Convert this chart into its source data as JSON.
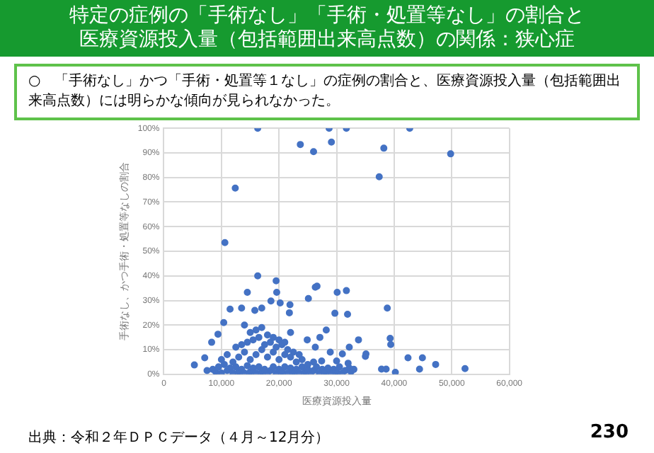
{
  "chart_data": {
    "type": "scatter",
    "title": "特定の症例の「手術なし」「手術・処置等なし」の割合と医療資源投入量（包括範囲出来高点数）の関係：狭心症",
    "subtitle": "○　「手術なし」かつ「手術・処置等１なし」の症例の割合と、医療資源投入量（包括範囲出来高点数）には明らかな傾向が見られなかった。",
    "xlabel": "医療資源投入量",
    "ylabel": "手術なし、かつ手術・処置等なしの割合",
    "annotations": [
      "出典：令和２年ＤＰＣデータ（４月～12月分）",
      "230"
    ],
    "xlim": [
      0,
      60000
    ],
    "xticks": [
      0,
      {
        "value": 10000,
        "label": "10,000"
      },
      {
        "value": 20000,
        "label": "20,000"
      },
      {
        "value": 30000,
        "label": "30,000"
      },
      {
        "value": 40000,
        "label": "40,000"
      },
      {
        "value": 50000,
        "label": "50,000"
      },
      {
        "value": 60000,
        "label": "60,000"
      }
    ],
    "ylim": [
      0,
      100
    ],
    "yticks": [
      {
        "value": 0,
        "label": "0%"
      },
      {
        "value": 10,
        "label": "10%"
      },
      {
        "value": 20,
        "label": "20%"
      },
      {
        "value": 30,
        "label": "30%"
      },
      {
        "value": 40,
        "label": "40%"
      },
      {
        "value": 50,
        "label": "50%"
      },
      {
        "value": 60,
        "label": "60%"
      },
      {
        "value": 70,
        "label": "70%"
      },
      {
        "value": 80,
        "label": "80%"
      },
      {
        "value": 90,
        "label": "90%"
      },
      {
        "value": 100,
        "label": "100%"
      }
    ],
    "grid": true,
    "legend": false,
    "marker": "circle",
    "series": [
      {
        "color": "#4472c4",
        "x": [
          16300,
          28700,
          31700,
          42700,
          23700,
          29100,
          26000,
          38200,
          49800,
          37400,
          12400,
          10600,
          16300,
          19500,
          26600,
          26300,
          30100,
          31700,
          14500,
          19600,
          25100,
          29700,
          31900,
          38800,
          11500,
          13500,
          15800,
          17000,
          18600,
          20200,
          21900,
          21800,
          10400,
          9400,
          33800,
          35100,
          35000,
          39300,
          39400,
          37800,
          38600,
          40200,
          42400,
          44900,
          44400,
          47200,
          52300,
          5300,
          7100,
          8300,
          7500,
          28200,
          27100,
          24900,
          26300,
          28900,
          31000,
          32200,
          30000,
          32200,
          27400,
          8500,
          9000,
          9500,
          10000,
          10500,
          11000,
          11500,
          12000,
          12500,
          13000,
          13500,
          14000,
          14500,
          15000,
          15500,
          16000,
          16500,
          17000,
          17500,
          18000,
          18500,
          19000,
          19500,
          20000,
          20500,
          21000,
          21500,
          22000,
          22500,
          23000,
          23500,
          24000,
          24500,
          25000,
          25500,
          26000,
          26500,
          27000,
          27500,
          28000,
          28500,
          29000,
          29500,
          30000,
          30500,
          31000,
          31500,
          32000,
          32500,
          33000,
          10000,
          11000,
          12000,
          13000,
          14000,
          15000,
          16000,
          17000,
          18000,
          19000,
          20000,
          21000,
          22000,
          23000,
          24000,
          25000,
          26000,
          12500,
          13500,
          14500,
          15500,
          16500,
          17500,
          18500,
          19500,
          20500,
          21500,
          22500,
          23500,
          15000,
          16000,
          17000,
          18000,
          19000,
          20000,
          21000,
          14000,
          22000
        ],
        "values": [
          100,
          100,
          100,
          100,
          93.4,
          94.4,
          90.5,
          91.9,
          89.6,
          80.3,
          75.7,
          53.5,
          40,
          38,
          35.8,
          35.4,
          33.3,
          34,
          33.3,
          33.3,
          30.8,
          24.8,
          24.4,
          26.9,
          26.5,
          26.9,
          26,
          26.9,
          29.8,
          29,
          28.3,
          25,
          21,
          16.3,
          14,
          8.3,
          7.3,
          14.6,
          12.1,
          2.1,
          2.1,
          0.8,
          6.7,
          6.7,
          2.1,
          4,
          2.3,
          3.8,
          6.7,
          13,
          1.5,
          18,
          15,
          14,
          11,
          9,
          8.3,
          11,
          5.4,
          2.5,
          5.4,
          2,
          1,
          3,
          0.5,
          4,
          1.5,
          2.5,
          0.5,
          3,
          1,
          2,
          0.5,
          3.5,
          1,
          2.5,
          0.5,
          3,
          1,
          2,
          0.5,
          1.5,
          3,
          0.5,
          2,
          1,
          3,
          0.5,
          2.5,
          1,
          2,
          0.5,
          3,
          1,
          2,
          0.5,
          1.5,
          3,
          0.5,
          2,
          1,
          2.5,
          0.5,
          2,
          1,
          3,
          0.5,
          1.5,
          4.5,
          1,
          2,
          6,
          8,
          5,
          7,
          9,
          6,
          8,
          10,
          7,
          9,
          6,
          8,
          7,
          5,
          6,
          4,
          5,
          11,
          12,
          13,
          14,
          15,
          12,
          13,
          11,
          12,
          10,
          9,
          8,
          17,
          18,
          19,
          16,
          15,
          14,
          13,
          20,
          17
        ]
      }
    ]
  }
}
